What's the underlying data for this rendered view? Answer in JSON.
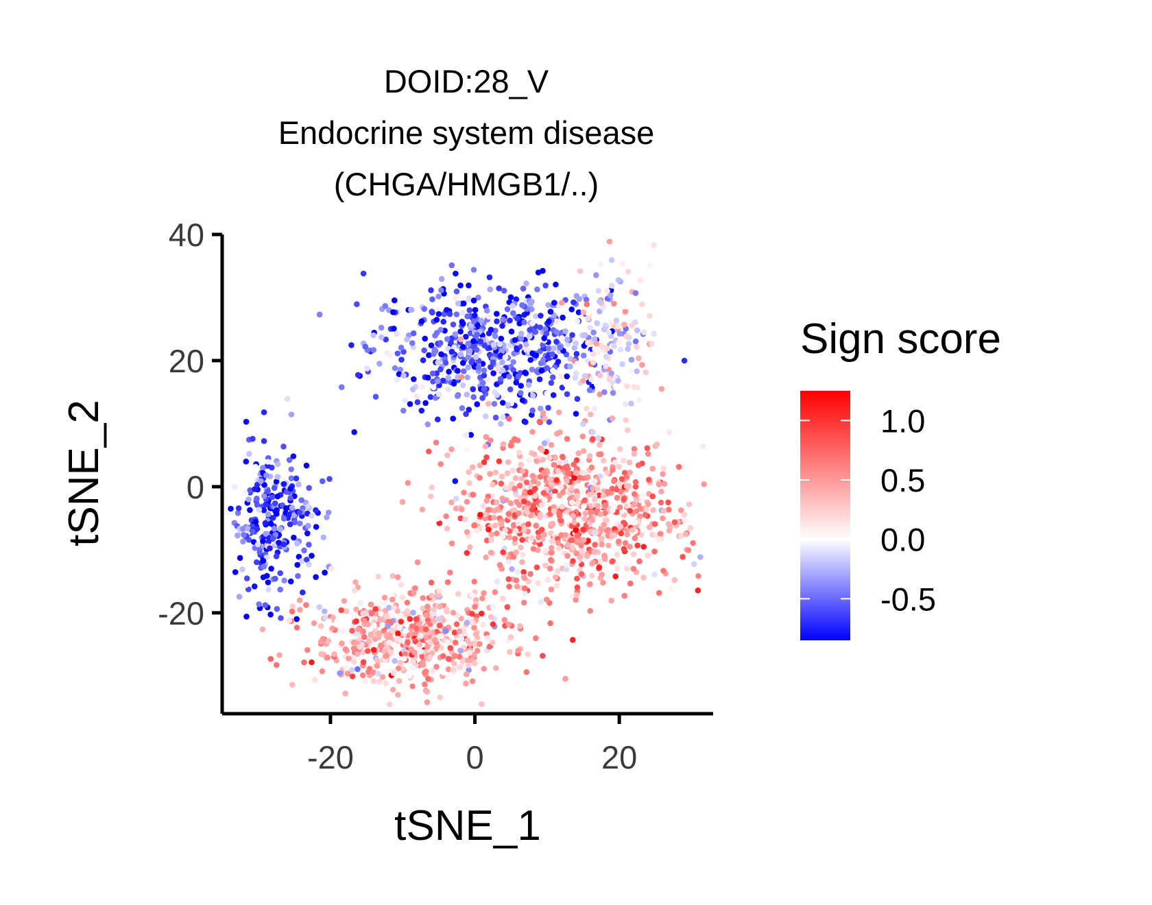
{
  "chart_data": {
    "type": "scatter",
    "title_lines": [
      "DOID:28_V",
      "Endocrine system disease",
      "(CHGA/HMGB1/..)"
    ],
    "xlabel": "tSNE_1",
    "ylabel": "tSNE_2",
    "xlim": [
      -35,
      33
    ],
    "ylim": [
      -36,
      40
    ],
    "xticks": [
      -20,
      0,
      20
    ],
    "xtick_labels": [
      "-20",
      "0",
      "20"
    ],
    "yticks": [
      40,
      20,
      0,
      -20
    ],
    "ytick_labels": [
      "40",
      "20",
      "0",
      "-20"
    ],
    "grid": false,
    "legend": {
      "title": "Sign score",
      "placement": "right",
      "min": -0.85,
      "max": 1.25,
      "ticks": [
        1.0,
        0.5,
        0.0,
        -0.5
      ],
      "tick_labels": [
        "1.0",
        "0.5",
        "0.0",
        "-0.5"
      ],
      "low_color": "#0000ff",
      "mid_color": "#ffffff",
      "high_color": "#ff0000"
    },
    "clusters": [
      {
        "region": "top-band",
        "x_center": 2,
        "y_center": 22,
        "x_spread": 11,
        "y_spread": 7,
        "score_mean": -0.55,
        "count": 620
      },
      {
        "region": "left",
        "x_center": -28,
        "y_center": -6,
        "x_spread": 4,
        "y_spread": 8,
        "score_mean": -0.6,
        "count": 300
      },
      {
        "region": "center-right",
        "x_center": 13,
        "y_center": -4,
        "x_spread": 10,
        "y_spread": 8,
        "score_mean": 0.45,
        "count": 900
      },
      {
        "region": "lower-left",
        "x_center": -9,
        "y_center": -24,
        "x_spread": 9,
        "y_spread": 5,
        "score_mean": 0.35,
        "count": 600
      },
      {
        "region": "upper-right-tail",
        "x_center": 19,
        "y_center": 24,
        "x_spread": 4,
        "y_spread": 8,
        "score_mean": 0.05,
        "count": 140
      }
    ]
  }
}
